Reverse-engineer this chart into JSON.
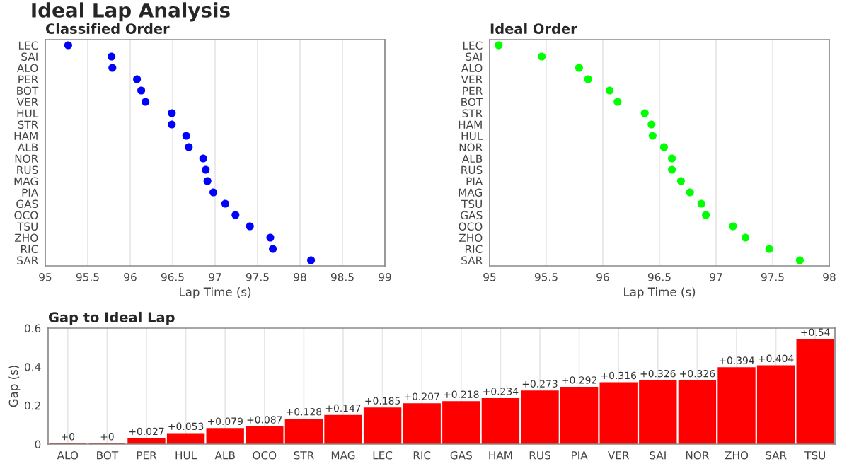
{
  "chart_data": [
    {
      "type": "scatter",
      "title": "Classified Order",
      "xlabel": "Lap Time (s)",
      "categories": [
        "LEC",
        "SAI",
        "ALO",
        "PER",
        "BOT",
        "VER",
        "HUL",
        "STR",
        "HAM",
        "ALB",
        "NOR",
        "RUS",
        "MAG",
        "PIA",
        "GAS",
        "OCO",
        "TSU",
        "ZHO",
        "RIC",
        "SAR"
      ],
      "series": [
        {
          "color": "#0000ff",
          "values": [
            95.27,
            95.78,
            95.79,
            96.08,
            96.13,
            96.18,
            96.49,
            96.49,
            96.66,
            96.69,
            96.86,
            96.89,
            96.91,
            96.98,
            97.12,
            97.24,
            97.41,
            97.65,
            97.68,
            98.13
          ]
        }
      ],
      "orientation": "horizontal",
      "xlim": [
        95,
        99
      ],
      "xticks": [
        95,
        95.5,
        96,
        96.5,
        97,
        97.5,
        98,
        98.5,
        99
      ],
      "grid": "x",
      "marker": "circle"
    },
    {
      "type": "scatter",
      "title": "Ideal Order",
      "xlabel": "Lap Time (s)",
      "categories": [
        "LEC",
        "SAI",
        "ALO",
        "VER",
        "PER",
        "BOT",
        "STR",
        "HAM",
        "HUL",
        "NOR",
        "ALB",
        "RUS",
        "PIA",
        "MAG",
        "TSU",
        "GAS",
        "OCO",
        "ZHO",
        "RIC",
        "SAR"
      ],
      "series": [
        {
          "color": "#00ff00",
          "values": [
            95.08,
            95.46,
            95.79,
            95.87,
            96.06,
            96.13,
            96.37,
            96.43,
            96.44,
            96.54,
            96.61,
            96.61,
            96.69,
            96.77,
            96.87,
            96.91,
            97.15,
            97.26,
            97.47,
            97.74
          ]
        }
      ],
      "orientation": "horizontal",
      "xlim": [
        95,
        98
      ],
      "xticks": [
        95,
        95.5,
        96,
        96.5,
        97,
        97.5,
        98
      ],
      "grid": "x",
      "marker": "circle"
    },
    {
      "type": "bar",
      "title": "Gap to Ideal Lap",
      "ylabel": "Gap (s)",
      "categories": [
        "ALO",
        "BOT",
        "PER",
        "HUL",
        "ALB",
        "OCO",
        "STR",
        "MAG",
        "LEC",
        "RIC",
        "GAS",
        "HAM",
        "RUS",
        "PIA",
        "VER",
        "SAI",
        "NOR",
        "ZHO",
        "SAR",
        "TSU"
      ],
      "values": [
        0,
        0,
        0.027,
        0.053,
        0.079,
        0.087,
        0.128,
        0.147,
        0.185,
        0.207,
        0.218,
        0.234,
        0.273,
        0.292,
        0.316,
        0.326,
        0.326,
        0.394,
        0.404,
        0.54
      ],
      "value_labels": [
        "+0",
        "+0",
        "+0.027",
        "+0.053",
        "+0.079",
        "+0.087",
        "+0.128",
        "+0.147",
        "+0.185",
        "+0.207",
        "+0.218",
        "+0.234",
        "+0.273",
        "+0.292",
        "+0.316",
        "+0.326",
        "+0.326",
        "+0.394",
        "+0.404",
        "+0.54"
      ],
      "color": "#ff0000",
      "ylim": [
        0,
        0.6
      ],
      "yticks": [
        0,
        0.2,
        0.4,
        0.6
      ],
      "grid": "x",
      "annotations": [
        "Ideal Lap Analysis"
      ]
    }
  ]
}
